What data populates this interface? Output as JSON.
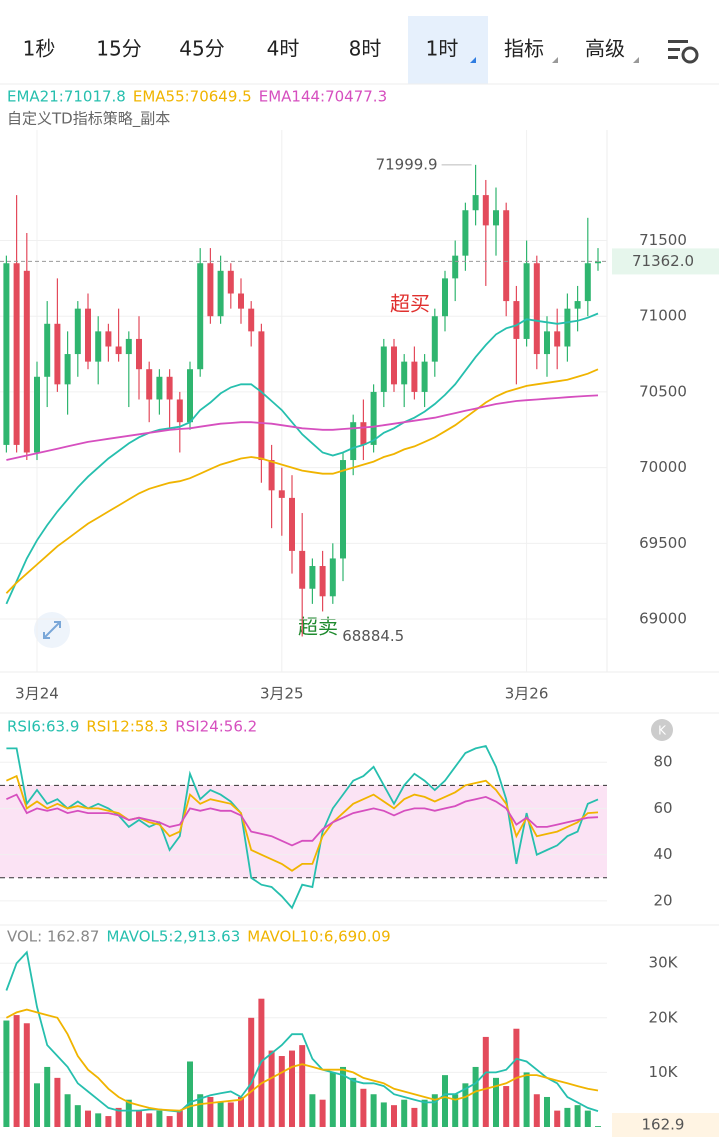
{
  "tabs": [
    {
      "label": "1秒"
    },
    {
      "label": "15分"
    },
    {
      "label": "45分"
    },
    {
      "label": "4时"
    },
    {
      "label": "8时"
    },
    {
      "label": "1时",
      "active": true,
      "dropdown": true
    },
    {
      "label": "指标",
      "dropdown": true
    },
    {
      "label": "高级",
      "dropdown": true
    }
  ],
  "chart_data": [
    {
      "type": "candlestick",
      "subtitle": "自定义TD指标策略_副本",
      "categories": [
        null,
        null,
        null,
        "3月24",
        null,
        null,
        null,
        null,
        null,
        null,
        null,
        null,
        null,
        null,
        null,
        null,
        null,
        null,
        null,
        null,
        null,
        null,
        null,
        null,
        null,
        null,
        null,
        "3月25",
        null,
        null,
        null,
        null,
        null,
        null,
        null,
        null,
        null,
        null,
        null,
        null,
        null,
        null,
        null,
        null,
        null,
        null,
        null,
        null,
        null,
        null,
        null,
        "3月26",
        null,
        null,
        null,
        null,
        null,
        null,
        null
      ],
      "open": [
        70150,
        71350,
        71300,
        70100,
        70600,
        70950,
        70550,
        70750,
        71050,
        70700,
        70900,
        70800,
        70750,
        70850,
        70650,
        70450,
        70600,
        70450,
        70300,
        70650,
        71350,
        71000,
        71300,
        71150,
        71050,
        70900,
        70050,
        69850,
        69800,
        69450,
        69200,
        69350,
        69150,
        69400,
        70050,
        70300,
        70150,
        70500,
        70800,
        70550,
        70700,
        70500,
        70700,
        71000,
        71250,
        71400,
        71700,
        71800,
        71600,
        71700,
        71100,
        70850,
        71350,
        70750,
        70900,
        70800,
        71050,
        71100,
        71350
      ],
      "high": [
        71400,
        71800,
        71550,
        70700,
        71100,
        71250,
        70900,
        71100,
        71150,
        71000,
        70950,
        71050,
        70900,
        71000,
        70700,
        70650,
        70650,
        70500,
        70700,
        71450,
        71450,
        71400,
        71350,
        71250,
        71100,
        70950,
        70150,
        70000,
        69950,
        69700,
        69400,
        69450,
        69500,
        70100,
        70350,
        70450,
        70550,
        70850,
        70850,
        70750,
        70800,
        70750,
        71050,
        71300,
        71500,
        71750,
        71999.9,
        71900,
        71850,
        71750,
        71200,
        71500,
        71400,
        71000,
        71050,
        71150,
        71200,
        71650,
        71450
      ],
      "low": [
        70100,
        70100,
        70050,
        70050,
        70400,
        70500,
        70350,
        70600,
        70650,
        70550,
        70700,
        70700,
        70400,
        70450,
        70300,
        70350,
        70250,
        70100,
        70250,
        70600,
        70950,
        70950,
        71050,
        70950,
        70800,
        69900,
        69600,
        69550,
        69300,
        68884.5,
        69100,
        69050,
        69100,
        69250,
        69950,
        70050,
        70100,
        70400,
        70500,
        70400,
        70450,
        70400,
        70600,
        70900,
        71100,
        71300,
        71600,
        71200,
        71400,
        71000,
        70550,
        70800,
        70650,
        70600,
        70650,
        70700,
        70900,
        71000,
        71300
      ],
      "close": [
        71350,
        70150,
        70100,
        70600,
        70950,
        70550,
        70750,
        71050,
        70700,
        70900,
        70800,
        70750,
        70850,
        70650,
        70450,
        70600,
        70450,
        70300,
        70650,
        71350,
        71000,
        71300,
        71150,
        71050,
        70900,
        70050,
        69850,
        69800,
        69450,
        69200,
        69350,
        69150,
        69400,
        70050,
        70300,
        70150,
        70500,
        70800,
        70550,
        70700,
        70500,
        70700,
        71000,
        71250,
        71400,
        71700,
        71800,
        71600,
        71700,
        71100,
        70850,
        71350,
        70750,
        70900,
        70800,
        71050,
        71100,
        71350,
        71362
      ],
      "up_color": "#2fb56f",
      "down_color": "#e34a5b",
      "series": [
        {
          "name": "EMA21:71017.8",
          "color": "#26bfae",
          "values": [
            69100,
            69250,
            69400,
            69520,
            69620,
            69710,
            69790,
            69870,
            69940,
            70000,
            70060,
            70110,
            70160,
            70200,
            70230,
            70250,
            70260,
            70270,
            70300,
            70380,
            70430,
            70490,
            70530,
            70550,
            70550,
            70500,
            70440,
            70380,
            70300,
            70220,
            70160,
            70100,
            70080,
            70100,
            70130,
            70150,
            70180,
            70230,
            70260,
            70300,
            70330,
            70370,
            70420,
            70480,
            70550,
            70640,
            70730,
            70810,
            70880,
            70920,
            70940,
            70980,
            70970,
            70960,
            70950,
            70960,
            70970,
            70990,
            71017.8
          ]
        },
        {
          "name": "EMA55:70649.5",
          "color": "#f0b400",
          "values": [
            69170,
            69240,
            69300,
            69360,
            69420,
            69480,
            69530,
            69580,
            69630,
            69670,
            69710,
            69750,
            69790,
            69830,
            69860,
            69880,
            69900,
            69910,
            69930,
            69960,
            69990,
            70020,
            70040,
            70060,
            70070,
            70060,
            70040,
            70020,
            70000,
            69980,
            69970,
            69960,
            69960,
            69980,
            70000,
            70020,
            70040,
            70070,
            70090,
            70120,
            70140,
            70170,
            70200,
            70240,
            70280,
            70330,
            70380,
            70430,
            70470,
            70500,
            70520,
            70540,
            70550,
            70560,
            70570,
            70580,
            70600,
            70620,
            70649.5
          ]
        },
        {
          "name": "EMA144:70477.3",
          "color": "#d64fbf",
          "values": [
            70050,
            70065,
            70080,
            70095,
            70110,
            70125,
            70140,
            70155,
            70170,
            70180,
            70190,
            70200,
            70210,
            70220,
            70230,
            70240,
            70250,
            70255,
            70260,
            70270,
            70280,
            70290,
            70295,
            70300,
            70300,
            70295,
            70290,
            70280,
            70270,
            70260,
            70255,
            70250,
            70250,
            70255,
            70260,
            70265,
            70270,
            70280,
            70290,
            70300,
            70310,
            70320,
            70330,
            70345,
            70360,
            70375,
            70390,
            70405,
            70420,
            70430,
            70440,
            70445,
            70450,
            70455,
            70460,
            70465,
            70470,
            70474,
            70477.3
          ]
        }
      ],
      "ylim": [
        68650,
        72230
      ],
      "yticks": [
        69000,
        69500,
        70000,
        70500,
        71000,
        71500
      ],
      "grid": true,
      "high_marker": 71999.9,
      "low_marker": 68884.5,
      "last_price": {
        "value": 71362,
        "label": "71362.0"
      },
      "annotations": [
        {
          "text": "超买",
          "color": "#e0302e"
        },
        {
          "text": "超卖",
          "color": "#1e8a2e"
        }
      ]
    },
    {
      "type": "line",
      "series": [
        {
          "name": "RSI6:63.9",
          "color": "#26bfae",
          "values": [
            86,
            86,
            62,
            68,
            62,
            64,
            60,
            63,
            60,
            62,
            60,
            57,
            52,
            55,
            52,
            54,
            42,
            48,
            75,
            64,
            68,
            66,
            63,
            58,
            30,
            27,
            26,
            22,
            17,
            27,
            26,
            50,
            60,
            66,
            72,
            74,
            78,
            70,
            62,
            70,
            75,
            72,
            68,
            72,
            78,
            84,
            86,
            87,
            78,
            64,
            36,
            58,
            40,
            42,
            44,
            48,
            50,
            62,
            63.9
          ]
        },
        {
          "name": "RSI12:58.3",
          "color": "#f0b400",
          "values": [
            72,
            74,
            60,
            63,
            60,
            62,
            60,
            61,
            60,
            60,
            59,
            58,
            55,
            56,
            54,
            53,
            48,
            50,
            66,
            62,
            64,
            63,
            62,
            58,
            42,
            40,
            38,
            36,
            33,
            36,
            36,
            48,
            54,
            58,
            62,
            64,
            66,
            63,
            60,
            64,
            66,
            65,
            63,
            65,
            67,
            70,
            71,
            72,
            68,
            62,
            48,
            56,
            48,
            49,
            50,
            52,
            54,
            58,
            58.3
          ]
        },
        {
          "name": "RSI24:56.2",
          "color": "#d64fbf",
          "values": [
            64,
            66,
            58,
            60,
            59,
            60,
            58,
            59,
            58,
            58,
            58,
            57,
            55,
            56,
            55,
            54,
            52,
            53,
            60,
            59,
            60,
            59,
            59,
            57,
            50,
            49,
            48,
            46,
            44,
            46,
            46,
            51,
            54,
            56,
            58,
            59,
            60,
            59,
            57,
            59,
            60,
            60,
            59,
            60,
            61,
            63,
            64,
            65,
            63,
            60,
            53,
            56,
            52,
            52,
            53,
            54,
            55,
            56,
            56.2
          ]
        }
      ],
      "ylim": [
        10,
        100
      ],
      "yticks": [
        20,
        40,
        60,
        80
      ],
      "overbought": 70,
      "oversold": 30,
      "band_color": "#fbe3f4"
    },
    {
      "type": "bar",
      "legend_label": "VOL: 162.87",
      "values": [
        19500,
        20500,
        19000,
        8000,
        11000,
        9000,
        6000,
        4000,
        3000,
        2500,
        2000,
        3500,
        5000,
        3000,
        2500,
        3000,
        2000,
        3000,
        12000,
        6000,
        5500,
        4500,
        4500,
        5500,
        20000,
        23500,
        14000,
        13000,
        14000,
        15000,
        6000,
        5000,
        10000,
        11000,
        9000,
        7000,
        6000,
        4500,
        4000,
        5000,
        3500,
        5000,
        6000,
        9500,
        6000,
        8000,
        11000,
        16500,
        9000,
        7500,
        18000,
        10000,
        6000,
        5500,
        3000,
        3500,
        4000,
        3000,
        162.87
      ],
      "series": [
        {
          "name": "MAVOL5:2,913.63",
          "color": "#26bfae",
          "values": [
            25000,
            30000,
            32000,
            22000,
            15000,
            13000,
            11000,
            8000,
            6500,
            5000,
            3500,
            3000,
            3000,
            3000,
            3200,
            3200,
            3000,
            2800,
            4500,
            5200,
            5800,
            6200,
            6500,
            5500,
            8000,
            12000,
            13500,
            15000,
            17000,
            17000,
            12500,
            10500,
            10000,
            9500,
            8500,
            8000,
            8000,
            7500,
            6000,
            5500,
            5000,
            4500,
            4500,
            6000,
            6000,
            7000,
            8000,
            10000,
            10000,
            10500,
            12500,
            12000,
            10500,
            9000,
            8000,
            5500,
            4500,
            3500,
            2913.63
          ]
        },
        {
          "name": "MAVOL10:6,690.09",
          "color": "#f0b400",
          "values": [
            20000,
            21000,
            21500,
            21000,
            20500,
            20000,
            17000,
            13000,
            10500,
            9000,
            7000,
            5500,
            4500,
            4000,
            3500,
            3200,
            3100,
            3000,
            3800,
            4200,
            4400,
            4600,
            4800,
            5000,
            6500,
            8000,
            9000,
            10000,
            11000,
            11500,
            11000,
            10500,
            10500,
            10500,
            10000,
            9000,
            8500,
            8000,
            7000,
            6500,
            6000,
            5500,
            5000,
            5500,
            5000,
            5500,
            6500,
            7000,
            7500,
            8000,
            9000,
            9500,
            9500,
            9000,
            8500,
            8000,
            7500,
            7000,
            6690.09
          ]
        }
      ],
      "ylim": [
        0,
        37000
      ],
      "yticks": [
        {
          "value": 10000,
          "label": "10K"
        },
        {
          "value": 20000,
          "label": "20K"
        },
        {
          "value": 30000,
          "label": "30K"
        }
      ],
      "last_label": {
        "value": 162.87,
        "label": "162.9"
      }
    }
  ]
}
